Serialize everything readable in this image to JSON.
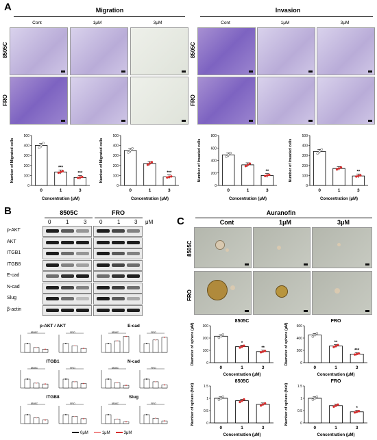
{
  "panel_a": {
    "letter": "A",
    "migration_title": "Migration",
    "invasion_title": "Invasion",
    "conditions": [
      "Cont",
      "1μM",
      "3μM"
    ],
    "rows": [
      "8505C",
      "FRO"
    ]
  },
  "panel_b": {
    "letter": "B",
    "cell_lines": [
      "8505C",
      "FRO"
    ],
    "doses": [
      "0",
      "1",
      "3"
    ],
    "unit": "μM",
    "proteins": [
      "p-AKT",
      "AKT",
      "ITGB1",
      "ITGB8",
      "E-cad",
      "N-cad",
      "Slug",
      "β-actin"
    ],
    "quant_titles": [
      "p-AKT / AKT",
      "E-cad",
      "ITGB1",
      "N-cad",
      "ITGB8",
      "Slug"
    ],
    "legend": [
      "0μM",
      "1μM",
      "3μM"
    ]
  },
  "panel_c": {
    "letter": "C",
    "title": "Auranofin",
    "conditions": [
      "Cont",
      "1μM",
      "3μM"
    ],
    "rows": [
      "8505C",
      "FRO"
    ]
  },
  "colors": {
    "red": "#d62d2d",
    "black": "#000000",
    "pink": "#f08a8a",
    "crystal": "#8a5ab5"
  },
  "chart_data": [
    {
      "type": "bar",
      "panel": "A",
      "categories": [
        "0",
        "1",
        "3"
      ],
      "values": [
        400,
        135,
        80
      ],
      "ylim": [
        0,
        500
      ],
      "yticks": [
        0,
        100,
        200,
        300,
        400,
        500
      ],
      "ylabel": "Number of Migrated cells",
      "xlabel": "Concentration (μM)",
      "significance": [
        "",
        "***",
        "***"
      ]
    },
    {
      "type": "bar",
      "panel": "A",
      "categories": [
        "0",
        "1",
        "3"
      ],
      "values": [
        350,
        220,
        85
      ],
      "ylim": [
        0,
        500
      ],
      "yticks": [
        0,
        100,
        200,
        300,
        400,
        500
      ],
      "ylabel": "Number of Migrated cells",
      "xlabel": "Concentration (μM)",
      "significance": [
        "",
        "",
        "***"
      ]
    },
    {
      "type": "bar",
      "panel": "A",
      "categories": [
        "0",
        "1",
        "3"
      ],
      "values": [
        490,
        330,
        160
      ],
      "ylim": [
        0,
        800
      ],
      "yticks": [
        0,
        200,
        400,
        600,
        800
      ],
      "ylabel": "Number of Invaded cells",
      "xlabel": "Concentration (μM)",
      "significance": [
        "",
        "",
        "**"
      ]
    },
    {
      "type": "bar",
      "panel": "A",
      "categories": [
        "0",
        "1",
        "3"
      ],
      "values": [
        340,
        170,
        95
      ],
      "ylim": [
        0,
        500
      ],
      "yticks": [
        0,
        100,
        200,
        300,
        400,
        500
      ],
      "ylabel": "Number of Invaded cells",
      "xlabel": "Concentration (μM)",
      "significance": [
        "",
        "",
        "**"
      ]
    },
    {
      "type": "bar",
      "panel": "C",
      "subtitle": "8505C",
      "categories": [
        "0",
        "1",
        "3"
      ],
      "values": [
        215,
        130,
        90
      ],
      "ylim": [
        0,
        300
      ],
      "yticks": [
        0,
        100,
        200,
        300
      ],
      "ylabel": "Diameter of sphere (μM)",
      "xlabel": "Concentration (μM)",
      "significance": [
        "",
        "*",
        "**"
      ]
    },
    {
      "type": "bar",
      "panel": "C",
      "subtitle": "FRO",
      "categories": [
        "0",
        "1",
        "3"
      ],
      "values": [
        450,
        270,
        140
      ],
      "ylim": [
        0,
        600
      ],
      "yticks": [
        0,
        200,
        400,
        600
      ],
      "ylabel": "Diameter of sphere (μM)",
      "xlabel": "Concentration (μM)",
      "significance": [
        "",
        "**",
        "***"
      ]
    },
    {
      "type": "bar",
      "panel": "C",
      "subtitle": "8505C",
      "categories": [
        "0",
        "1",
        "3"
      ],
      "values": [
        1.0,
        0.9,
        0.75
      ],
      "ylim": [
        0,
        1.5
      ],
      "yticks": [
        0,
        0.5,
        1.0,
        1.5
      ],
      "ylabel": "Number of sphere (fold)",
      "xlabel": "Concentration (μM)",
      "significance": [
        "",
        "",
        ""
      ]
    },
    {
      "type": "bar",
      "panel": "C",
      "subtitle": "FRO",
      "categories": [
        "0",
        "1",
        "3"
      ],
      "values": [
        1.0,
        0.7,
        0.45
      ],
      "ylim": [
        0,
        1.5
      ],
      "yticks": [
        0,
        0.5,
        1.0,
        1.5
      ],
      "ylabel": "Number of sphere (fold)",
      "xlabel": "Concentration (μM)",
      "significance": [
        "",
        "",
        "*"
      ]
    }
  ],
  "quant_data": [
    {
      "subtitle": "8505C",
      "values": [
        1.0,
        0.55,
        0.35
      ]
    },
    {
      "subtitle": "FRO",
      "values": [
        1.0,
        0.75,
        0.45
      ]
    },
    {
      "subtitle": "8505C",
      "values": [
        1.0,
        1.3,
        1.8
      ]
    },
    {
      "subtitle": "FRO",
      "values": [
        1.0,
        1.4,
        1.7
      ]
    },
    {
      "subtitle": "8505C",
      "values": [
        1.0,
        0.55,
        0.45
      ]
    },
    {
      "subtitle": "FRO",
      "values": [
        1.0,
        0.7,
        0.5
      ]
    },
    {
      "subtitle": "8505C",
      "values": [
        1.0,
        0.6,
        0.3
      ]
    },
    {
      "subtitle": "FRO",
      "values": [
        1.0,
        0.7,
        0.35
      ]
    },
    {
      "subtitle": "8505C",
      "values": [
        1.0,
        0.65,
        0.4
      ]
    },
    {
      "subtitle": "FRO",
      "values": [
        1.0,
        0.8,
        0.55
      ]
    },
    {
      "subtitle": "8505C",
      "values": [
        1.0,
        0.5,
        0.2
      ]
    },
    {
      "subtitle": "FRO",
      "values": [
        1.0,
        0.6,
        0.3
      ]
    }
  ]
}
